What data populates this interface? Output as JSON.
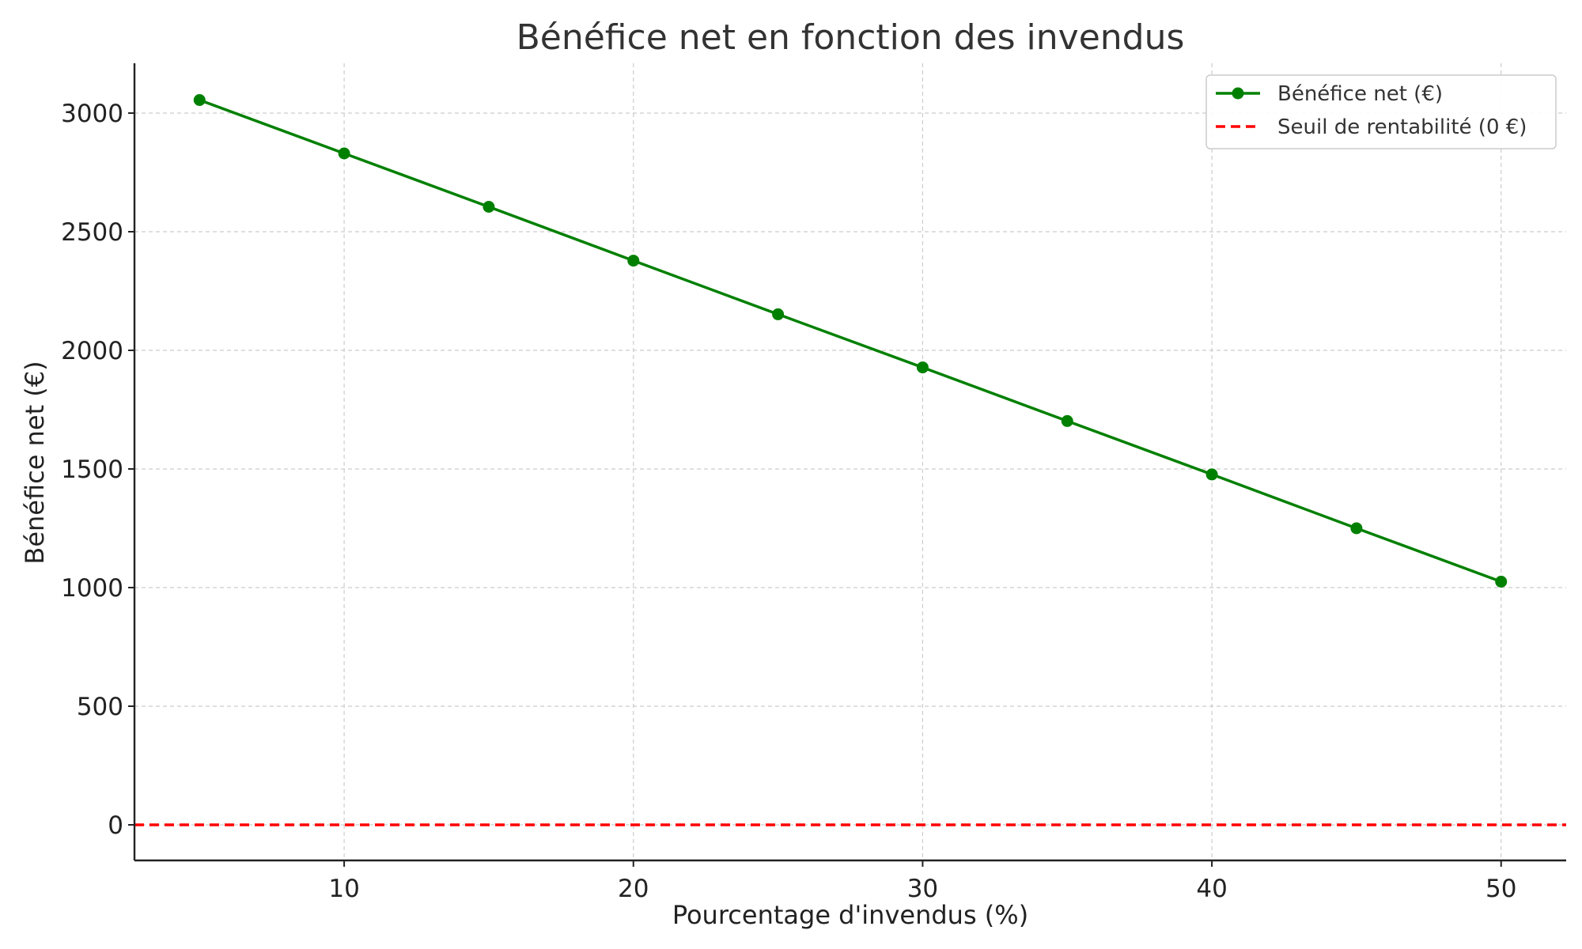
{
  "chart_data": {
    "type": "line",
    "title": "Bénéfice net en fonction des invendus",
    "xlabel": "Pourcentage d'invendus (%)",
    "ylabel": "Bénéfice net (€)",
    "xlim": [
      2.75,
      52.25
    ],
    "ylim": [
      -150,
      3210
    ],
    "xticks": [
      10,
      20,
      30,
      40,
      50
    ],
    "yticks": [
      0,
      500,
      1000,
      1500,
      2000,
      2500,
      3000
    ],
    "grid": true,
    "legend_position": "top-right",
    "series": [
      {
        "name": "Bénéfice net (€)",
        "color": "#008000",
        "marker": "circle",
        "x": [
          5,
          10,
          15,
          20,
          25,
          30,
          35,
          40,
          45,
          50
        ],
        "y": [
          3055,
          2830,
          2605,
          2378,
          2152,
          1928,
          1702,
          1477,
          1250,
          1025
        ]
      }
    ],
    "reference_lines": [
      {
        "name": "Seuil de rentabilité (0 €)",
        "color": "#ff0000",
        "style": "dashed",
        "y": 0
      }
    ]
  }
}
